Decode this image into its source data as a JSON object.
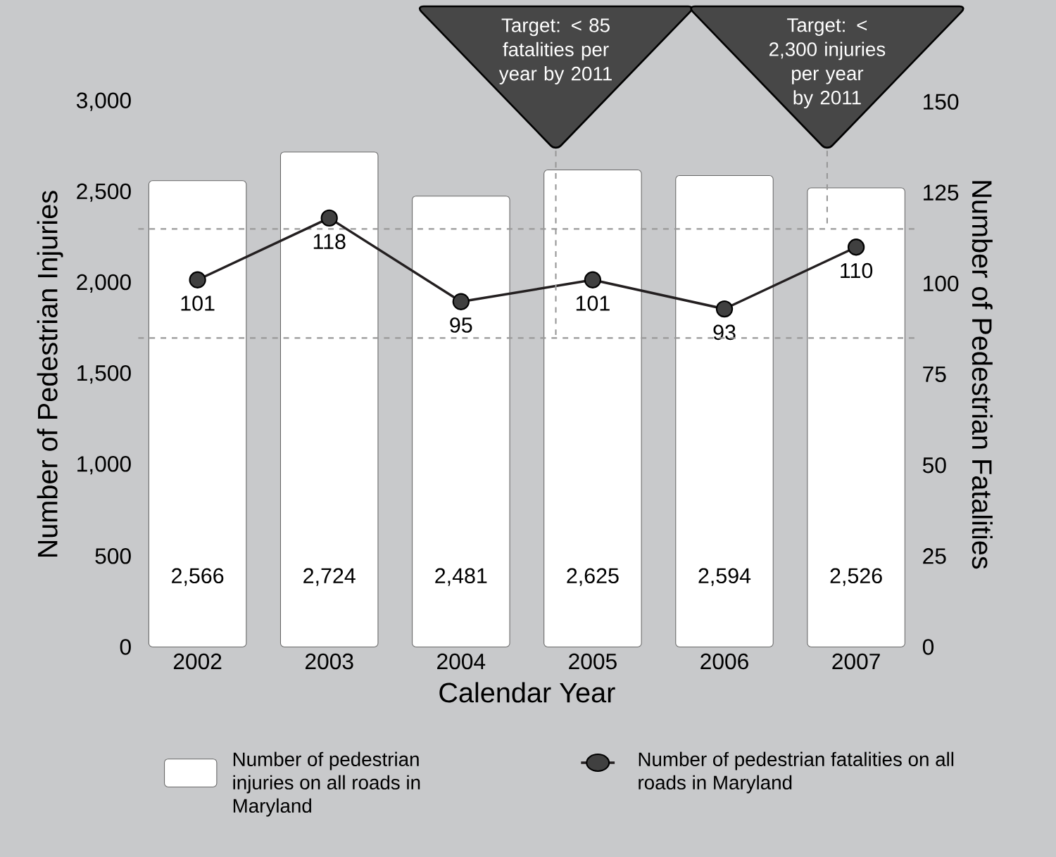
{
  "chart_data": {
    "type": "bar",
    "xlabel": "Calendar Year",
    "ylabel": "Number of Pedestrian Injuries",
    "y2label": "Number of Pedestrian Fatalities",
    "categories": [
      "2002",
      "2003",
      "2004",
      "2005",
      "2006",
      "2007"
    ],
    "series": [
      {
        "name": "Number of pedestrian injuries on all roads in Maryland",
        "color": "#ffffff",
        "values": [
          2566,
          2724,
          2481,
          2625,
          2594,
          2526
        ],
        "value_labels": [
          "2,566",
          "2,724",
          "2,481",
          "2,625",
          "2,594",
          "2,526"
        ]
      },
      {
        "name": "Number of pedestrian fatalities on all roads in Maryland",
        "type": "line",
        "axis": "y2",
        "color": "#231f20",
        "values": [
          101,
          118,
          95,
          101,
          93,
          110
        ],
        "value_labels": [
          "101",
          "118",
          "95",
          "101",
          "93",
          "110"
        ]
      }
    ],
    "marker": "circle",
    "legend": "bottom",
    "ylim": [
      0,
      3000
    ],
    "yticks": [
      0,
      500,
      {
        "value": 1000,
        "label": "1,000"
      },
      {
        "value": 1500,
        "label": "1,500"
      },
      {
        "value": 2000,
        "label": "2,000"
      },
      {
        "value": 2500,
        "label": "2,500"
      },
      {
        "value": 3000,
        "label": "3,000"
      }
    ],
    "y2lim": [
      0,
      150
    ],
    "y2ticks": [
      0,
      25,
      50,
      75,
      100,
      125,
      150
    ],
    "ref_lines": [
      {
        "axis": "y2",
        "value": 85,
        "color": "#999999",
        "line_style": "dashed"
      },
      {
        "axis": "y",
        "value": 2300,
        "color": "#999999",
        "line_style": "dashed"
      }
    ],
    "annotations": [
      "Target: < 85 fatalities per year by 2011",
      "Target: < 2,300 injuries per year by 2011"
    ]
  }
}
